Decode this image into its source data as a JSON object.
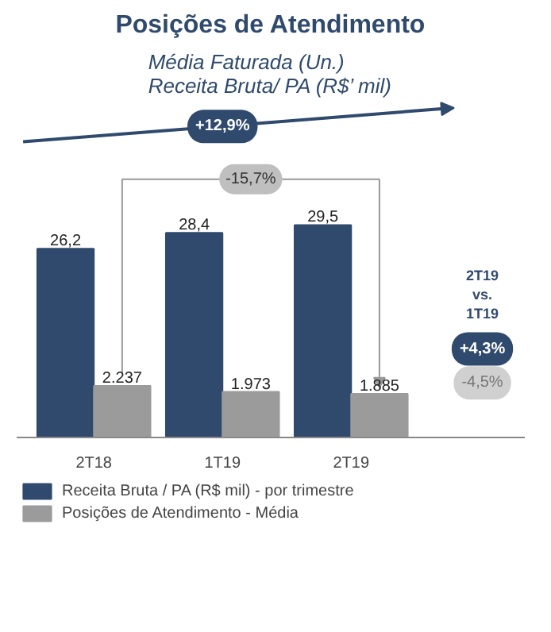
{
  "chart_data": {
    "type": "bar",
    "title": "Posições de Atendimento",
    "subtitle": "Média Faturada (Un.)\nReceita Bruta/ PA (R$’ mil)",
    "categories": [
      "2T18",
      "1T19",
      "2T19"
    ],
    "series": [
      {
        "name": "Receita Bruta / PA (R$ mil) - por trimestre",
        "color": "#2f4a6d",
        "values": [
          26.2,
          28.4,
          29.5
        ],
        "value_labels": [
          "26,2",
          "28,4",
          "29,5"
        ]
      },
      {
        "name": "Posições de Atendimento - Média",
        "color": "#9b9b9b",
        "values": [
          2237,
          1973,
          1885
        ],
        "value_labels": [
          "2.237",
          "1.973",
          "1.885"
        ],
        "axis": "y2"
      }
    ],
    "tick_labels": "x",
    "legend": "bottom",
    "annotations": [
      "+12,9%",
      "-15,7%",
      "2T19\nvs.\n1T19",
      "+4,3%",
      "-4,5%"
    ]
  }
}
